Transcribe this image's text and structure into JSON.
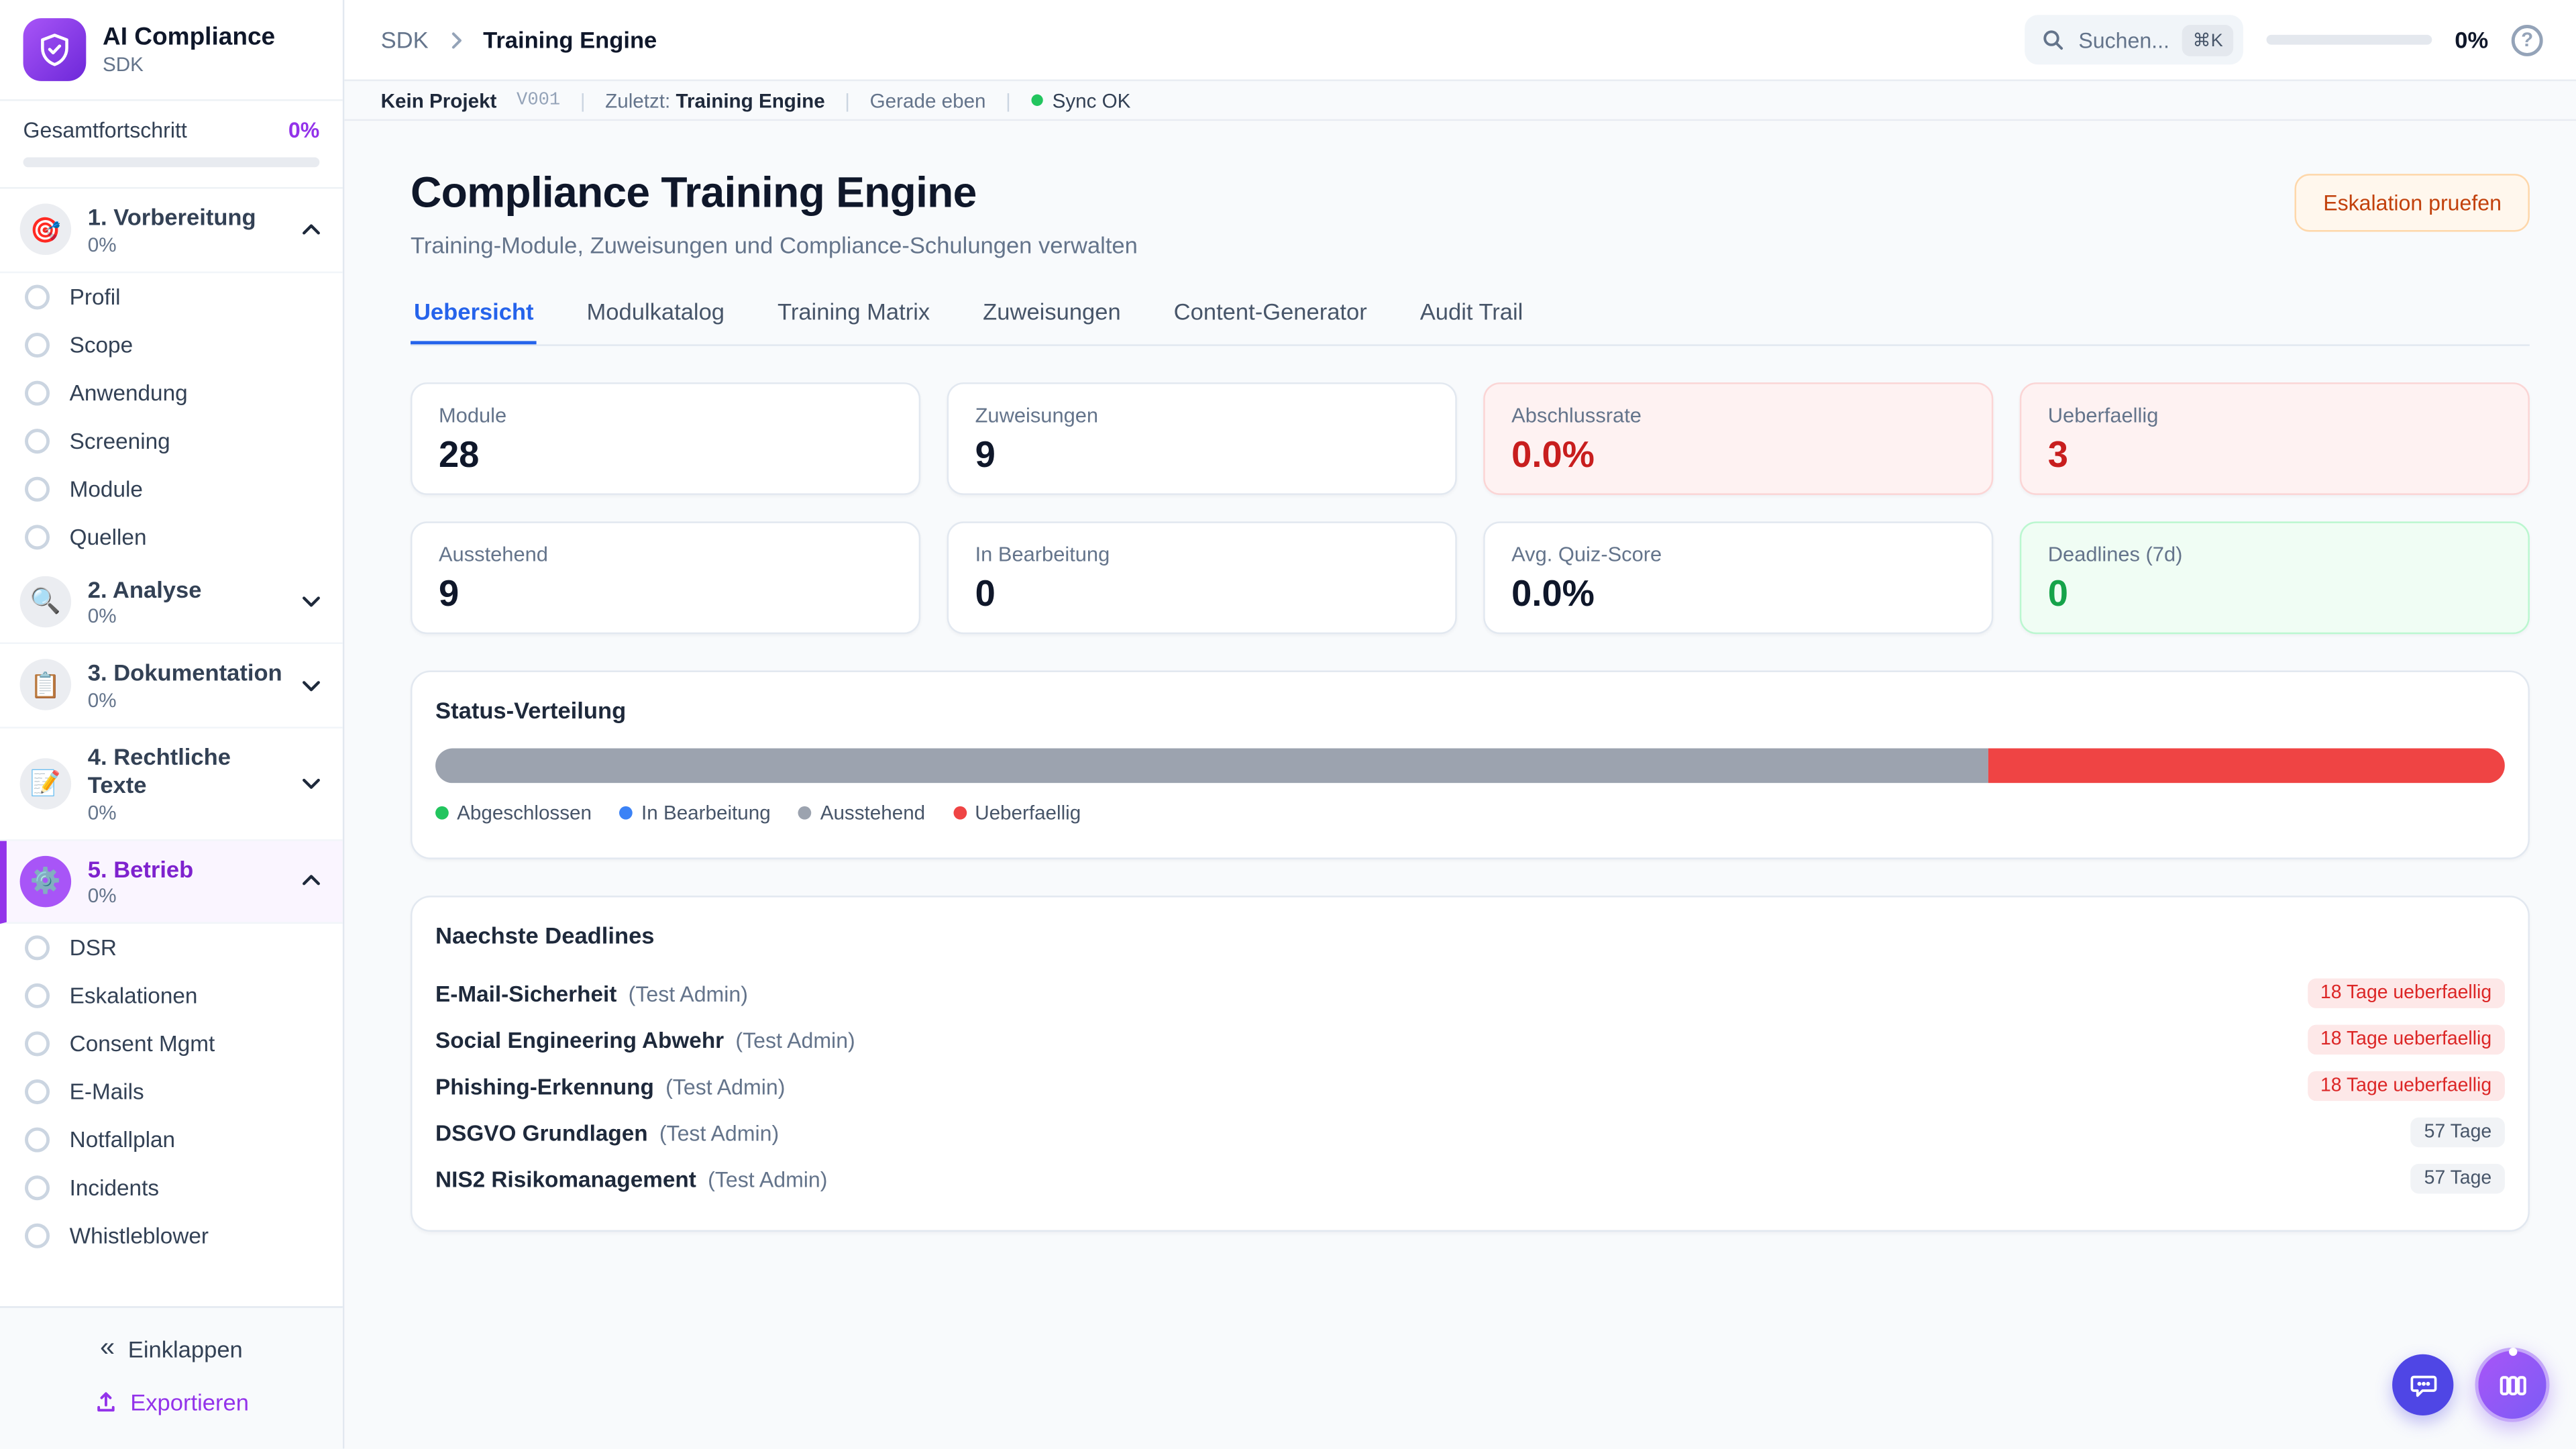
{
  "brand": {
    "title": "AI Compliance",
    "subtitle": "SDK"
  },
  "colors": {
    "accent_purple": "#9333EA",
    "active_tab_blue": "#2563EB",
    "danger_red": "#DC2626",
    "success_green": "#16A34A",
    "warn_orange": "#C2410C"
  },
  "sidebar": {
    "overall_label": "Gesamtfortschritt",
    "overall_value": "0%",
    "overall_pct_width": "0%",
    "sections": [
      {
        "label": "1. Vorbereitung",
        "pct": "0%",
        "icon": "🎯",
        "state": "expanded",
        "items": [
          "Profil",
          "Scope",
          "Anwendung",
          "Screening",
          "Module",
          "Quellen"
        ]
      },
      {
        "label": "2. Analyse",
        "pct": "0%",
        "icon": "🔍",
        "state": "collapsed",
        "items": []
      },
      {
        "label": "3. Dokumentation",
        "pct": "0%",
        "icon": "📋",
        "state": "collapsed",
        "items": []
      },
      {
        "label": "4. Rechtliche Texte",
        "pct": "0%",
        "icon": "📝",
        "state": "collapsed",
        "items": []
      },
      {
        "label": "5. Betrieb",
        "pct": "0%",
        "icon": "⚙️",
        "state": "expanded-active",
        "items": [
          "DSR",
          "Eskalationen",
          "Consent Mgmt",
          "E-Mails",
          "Notfallplan",
          "Incidents",
          "Whistleblower"
        ]
      }
    ],
    "collapse_icon": "«",
    "collapse_label": "Einklappen",
    "export_label": "Exportieren"
  },
  "header": {
    "breadcrumb": [
      "SDK",
      "Training Engine"
    ],
    "search_placeholder": "Suchen...",
    "search_kbd": "⌘K",
    "progress_value": "0%",
    "progress_width": "0%",
    "help_icon": "?"
  },
  "statusbar": {
    "project": "Kein Projekt",
    "version": "V001",
    "divider": "|",
    "last_label": "Zuletzt:",
    "last_value": "Training Engine",
    "time": "Gerade eben",
    "sync": "Sync OK"
  },
  "page": {
    "title": "Compliance Training Engine",
    "subtitle": "Training-Module, Zuweisungen und Compliance-Schulungen verwalten",
    "action": "Eskalation pruefen",
    "tabs": [
      {
        "label": "Uebersicht",
        "active": true
      },
      {
        "label": "Modulkatalog",
        "active": false
      },
      {
        "label": "Training Matrix",
        "active": false
      },
      {
        "label": "Zuweisungen",
        "active": false
      },
      {
        "label": "Content-Generator",
        "active": false
      },
      {
        "label": "Audit Trail",
        "active": false
      }
    ]
  },
  "stats": [
    {
      "label": "Module",
      "value": "28",
      "variant": "default"
    },
    {
      "label": "Zuweisungen",
      "value": "9",
      "variant": "default"
    },
    {
      "label": "Abschlussrate",
      "value": "0.0%",
      "variant": "danger"
    },
    {
      "label": "Ueberfaellig",
      "value": "3",
      "variant": "danger"
    },
    {
      "label": "Ausstehend",
      "value": "9",
      "variant": "default"
    },
    {
      "label": "In Bearbeitung",
      "value": "0",
      "variant": "default"
    },
    {
      "label": "Avg. Quiz-Score",
      "value": "0.0%",
      "variant": "default"
    },
    {
      "label": "Deadlines (7d)",
      "value": "0",
      "variant": "success"
    }
  ],
  "chart_data": {
    "type": "bar",
    "title": "Status-Verteilung",
    "categories": [
      "Abgeschlossen",
      "In Bearbeitung",
      "Ausstehend",
      "Ueberfaellig"
    ],
    "values": [
      0,
      0,
      9,
      3
    ],
    "segments": [
      {
        "name": "Ausstehend",
        "width": "75%",
        "color": "#9CA3AF"
      },
      {
        "name": "Ueberfaellig",
        "width": "25%",
        "color": "#EF4444"
      }
    ],
    "legend": [
      {
        "label": "Abgeschlossen",
        "color": "#22C55E"
      },
      {
        "label": "In Bearbeitung",
        "color": "#3B82F6"
      },
      {
        "label": "Ausstehend",
        "color": "#9CA3AF"
      },
      {
        "label": "Ueberfaellig",
        "color": "#EF4444"
      }
    ]
  },
  "deadlines": {
    "title": "Naechste Deadlines",
    "items": [
      {
        "module": "E-Mail-Sicherheit",
        "assignee": "(Test Admin)",
        "badge": "18 Tage ueberfaellig",
        "overdue": true
      },
      {
        "module": "Social Engineering Abwehr",
        "assignee": "(Test Admin)",
        "badge": "18 Tage ueberfaellig",
        "overdue": true
      },
      {
        "module": "Phishing-Erkennung",
        "assignee": "(Test Admin)",
        "badge": "18 Tage ueberfaellig",
        "overdue": true
      },
      {
        "module": "DSGVO Grundlagen",
        "assignee": "(Test Admin)",
        "badge": "57 Tage",
        "overdue": false
      },
      {
        "module": "NIS2 Risikomanagement",
        "assignee": "(Test Admin)",
        "badge": "57 Tage",
        "overdue": false
      }
    ]
  }
}
